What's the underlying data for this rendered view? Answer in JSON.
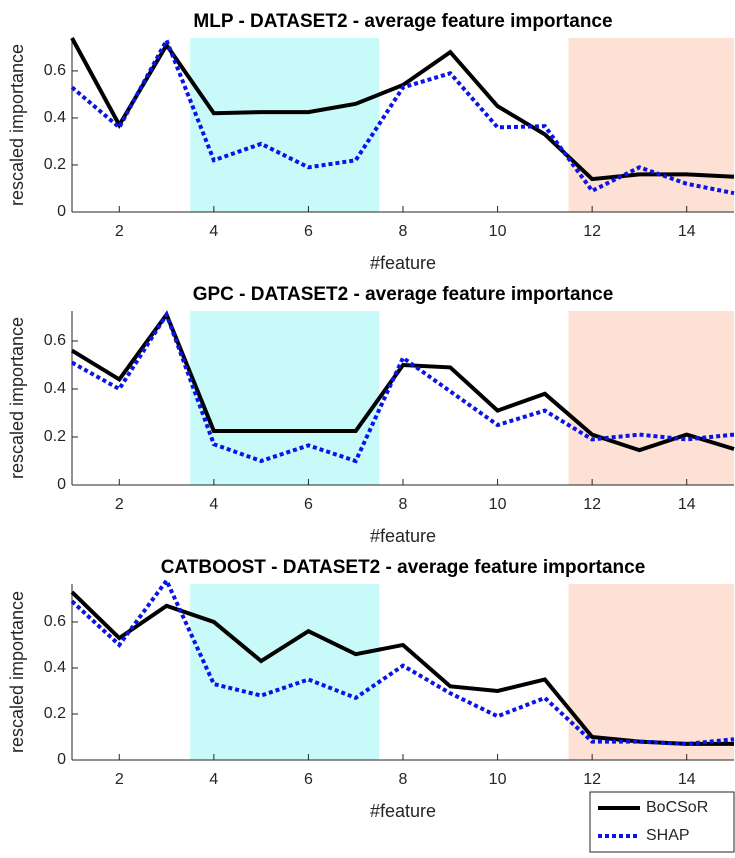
{
  "chart_data": [
    {
      "type": "line",
      "title": "MLP - DATASET2 - average feature importance",
      "x_label": "#feature",
      "y_label": "rescaled importance",
      "x": [
        1,
        2,
        3,
        4,
        5,
        6,
        7,
        8,
        9,
        10,
        11,
        12,
        13,
        14,
        15
      ],
      "xlim": [
        1,
        15
      ],
      "xticks": [
        2,
        4,
        6,
        8,
        10,
        12,
        14
      ],
      "ylim": [
        0,
        0.74
      ],
      "yticks": [
        0,
        0.2,
        0.4,
        0.6
      ],
      "spans": [
        {
          "from": 3.5,
          "to": 7.5,
          "color": "#c8fafa"
        },
        {
          "from": 11.5,
          "to": 15,
          "color": "#fde1d4"
        }
      ],
      "series": [
        {
          "color": "#000000",
          "style": "solid",
          "values": [
            0.74,
            0.37,
            0.71,
            0.42,
            0.425,
            0.425,
            0.46,
            0.54,
            0.68,
            0.45,
            0.33,
            0.14,
            0.16,
            0.16,
            0.15
          ]
        },
        {
          "color": "#0a14e6",
          "style": "dotted",
          "values": [
            0.53,
            0.36,
            0.73,
            0.22,
            0.29,
            0.19,
            0.22,
            0.53,
            0.59,
            0.36,
            0.365,
            0.09,
            0.19,
            0.12,
            0.08
          ]
        }
      ]
    },
    {
      "type": "line",
      "title": "GPC - DATASET2 - average feature importance",
      "x_label": "#feature",
      "y_label": "rescaled importance",
      "x": [
        1,
        2,
        3,
        4,
        5,
        6,
        7,
        8,
        9,
        10,
        11,
        12,
        13,
        14,
        15
      ],
      "xlim": [
        1,
        15
      ],
      "xticks": [
        2,
        4,
        6,
        8,
        10,
        12,
        14
      ],
      "ylim": [
        0,
        0.725
      ],
      "yticks": [
        0,
        0.2,
        0.4,
        0.6
      ],
      "spans": [
        {
          "from": 3.5,
          "to": 7.5,
          "color": "#c8fafa"
        },
        {
          "from": 11.5,
          "to": 15,
          "color": "#fde1d4"
        }
      ],
      "series": [
        {
          "color": "#000000",
          "style": "solid",
          "values": [
            0.56,
            0.44,
            0.71,
            0.225,
            0.225,
            0.225,
            0.225,
            0.5,
            0.49,
            0.31,
            0.38,
            0.21,
            0.145,
            0.21,
            0.15
          ]
        },
        {
          "color": "#0a14e6",
          "style": "dotted",
          "values": [
            0.51,
            0.4,
            0.71,
            0.17,
            0.1,
            0.165,
            0.1,
            0.53,
            0.39,
            0.25,
            0.31,
            0.19,
            0.21,
            0.19,
            0.21
          ]
        }
      ]
    },
    {
      "type": "line",
      "title": "CATBOOST - DATASET2 - average feature importance",
      "x_label": "#feature",
      "y_label": "rescaled importance",
      "x": [
        1,
        2,
        3,
        4,
        5,
        6,
        7,
        8,
        9,
        10,
        11,
        12,
        13,
        14,
        15
      ],
      "xlim": [
        1,
        15
      ],
      "xticks": [
        2,
        4,
        6,
        8,
        10,
        12,
        14
      ],
      "ylim": [
        0,
        0.765
      ],
      "yticks": [
        0,
        0.2,
        0.4,
        0.6
      ],
      "spans": [
        {
          "from": 3.5,
          "to": 7.5,
          "color": "#c8fafa"
        },
        {
          "from": 11.5,
          "to": 15,
          "color": "#fde1d4"
        }
      ],
      "legend": "bottom-right",
      "series": [
        {
          "name": "BoCSoR",
          "color": "#000000",
          "style": "solid",
          "values": [
            0.73,
            0.53,
            0.67,
            0.6,
            0.43,
            0.56,
            0.46,
            0.5,
            0.32,
            0.3,
            0.35,
            0.1,
            0.08,
            0.07,
            0.07
          ]
        },
        {
          "name": "SHAP",
          "color": "#0a14e6",
          "style": "dotted",
          "values": [
            0.69,
            0.5,
            0.78,
            0.33,
            0.28,
            0.35,
            0.27,
            0.41,
            0.29,
            0.19,
            0.27,
            0.08,
            0.08,
            0.07,
            0.09
          ]
        }
      ]
    }
  ]
}
